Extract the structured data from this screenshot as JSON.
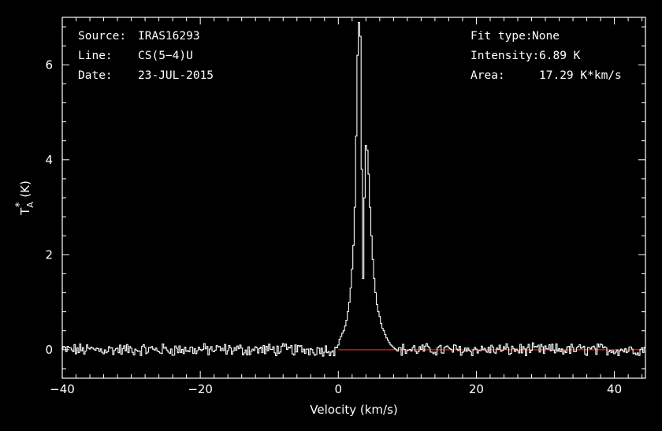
{
  "chart_data": {
    "type": "line",
    "xlabel": "Velocity (km/s)",
    "ylabel": {
      "base": "T",
      "sub": "A",
      "sup": "*",
      "unit": "(K)"
    },
    "xlim": [
      -40,
      44.5
    ],
    "ylim": [
      -0.6,
      7.0
    ],
    "x_ticks": [
      "−40",
      "−20",
      "0",
      "20",
      "40"
    ],
    "x_tick_values": [
      -40,
      -20,
      0,
      20,
      40
    ],
    "y_ticks": [
      "0",
      "2",
      "4",
      "6"
    ],
    "y_tick_values": [
      0,
      2,
      4,
      6
    ],
    "header_left": [
      {
        "label": "Source:",
        "value": "IRAS16293"
      },
      {
        "label": "Line:",
        "value": "CS(5−4)U"
      },
      {
        "label": "Date:",
        "value": "23-JUL-2015"
      }
    ],
    "header_right": [
      {
        "label": "Fit type:",
        "value": "None"
      },
      {
        "label": "Intensity:",
        "value": "6.89 K"
      },
      {
        "label": "Area:",
        "value": "17.29 K*km/s"
      }
    ],
    "colors": {
      "spectrum": "#ffffff",
      "baseline": "#e02020",
      "background": "#000000",
      "axes": "#ffffff"
    },
    "baseline": {
      "x0": 0,
      "x1": 44.5,
      "y": 0
    },
    "series": [
      {
        "step": true,
        "x": [
          0.0,
          0.2,
          0.4,
          0.6,
          0.8,
          1.0,
          1.2,
          1.4,
          1.6,
          1.8,
          2.0,
          2.2,
          2.4,
          2.6,
          2.8,
          3.0,
          3.2,
          3.4,
          3.6,
          3.8,
          4.0,
          4.2,
          4.4,
          4.6,
          4.8,
          5.0,
          5.2,
          5.4,
          5.6,
          5.8,
          6.0,
          6.2,
          6.4,
          6.6,
          6.8,
          7.0,
          7.2,
          7.4,
          7.6,
          7.8,
          8.0,
          8.2,
          8.4,
          8.6,
          8.8
        ],
        "y": [
          0.1,
          0.22,
          0.28,
          0.35,
          0.4,
          0.5,
          0.62,
          0.8,
          1.0,
          1.3,
          1.7,
          2.2,
          3.0,
          4.5,
          6.2,
          6.89,
          6.6,
          3.8,
          1.5,
          3.2,
          4.3,
          4.2,
          3.7,
          3.0,
          2.4,
          1.9,
          1.5,
          1.2,
          0.95,
          0.8,
          0.7,
          0.55,
          0.45,
          0.4,
          0.32,
          0.25,
          0.2,
          0.15,
          0.1,
          0.08,
          0.05,
          0.02,
          0.0,
          -0.03,
          0.04
        ]
      }
    ]
  }
}
